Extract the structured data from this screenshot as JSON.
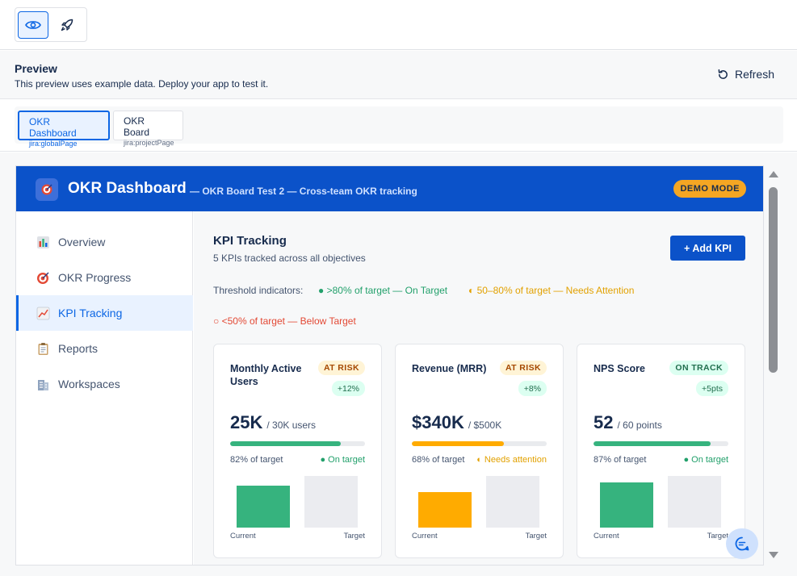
{
  "toolbar": {
    "view_icon": "eye-icon",
    "deploy_icon": "rocket-icon"
  },
  "preview": {
    "title": "Preview",
    "subtitle": "This preview uses example data. Deploy your app to test it.",
    "refresh_label": "Refresh"
  },
  "modules": [
    {
      "name": "OKR Dashboard",
      "key": "jira:globalPage",
      "active": true
    },
    {
      "name": "OKR Board",
      "key": "jira:projectPage",
      "active": false
    }
  ],
  "app": {
    "title": "OKR Dashboard",
    "subtitle": "— OKR Board Test 2 — Cross-team OKR tracking",
    "badge": "DEMO MODE",
    "brand_color": "#0b52c9"
  },
  "nav": [
    {
      "label": "Overview",
      "icon": "bar-chart-icon",
      "active": false
    },
    {
      "label": "OKR Progress",
      "icon": "target-icon",
      "active": false
    },
    {
      "label": "KPI Tracking",
      "icon": "trend-chart-icon",
      "active": true
    },
    {
      "label": "Reports",
      "icon": "clipboard-icon",
      "active": false
    },
    {
      "label": "Workspaces",
      "icon": "building-icon",
      "active": false
    }
  ],
  "kpi": {
    "title": "KPI Tracking",
    "subtitle": "5 KPIs tracked across all objectives",
    "add_label": "+ Add KPI",
    "threshold_label": "Threshold indicators:",
    "threshold_green": "● >80% of target — On Target",
    "threshold_yellow": "◐ 50–80% of target — Needs Attention",
    "threshold_red": "○ <50% of target — Below Target",
    "cards": [
      {
        "name": "Monthly Active Users",
        "status": "AT RISK",
        "delta": "+12%",
        "value": "25K",
        "target": "/ 30K  users",
        "progress": 0.82,
        "pct_label": "82% of target",
        "state_label": "● On target",
        "color": "#36b37e",
        "current_label": "Current",
        "target_label": "Target"
      },
      {
        "name": "Revenue (MRR)",
        "status": "AT RISK",
        "delta": "+8%",
        "value": "$340K",
        "target": "/ $500K",
        "progress": 0.68,
        "pct_label": "68% of target",
        "state_label": "◐ Needs attention",
        "color": "#ffab00",
        "current_label": "Current",
        "target_label": "Target"
      },
      {
        "name": "NPS Score",
        "status": "ON TRACK",
        "delta": "+5pts",
        "value": "52",
        "target": "/ 60  points",
        "progress": 0.87,
        "pct_label": "87% of target",
        "state_label": "● On target",
        "color": "#36b37e",
        "current_label": "Current",
        "target_label": "Target"
      }
    ]
  }
}
